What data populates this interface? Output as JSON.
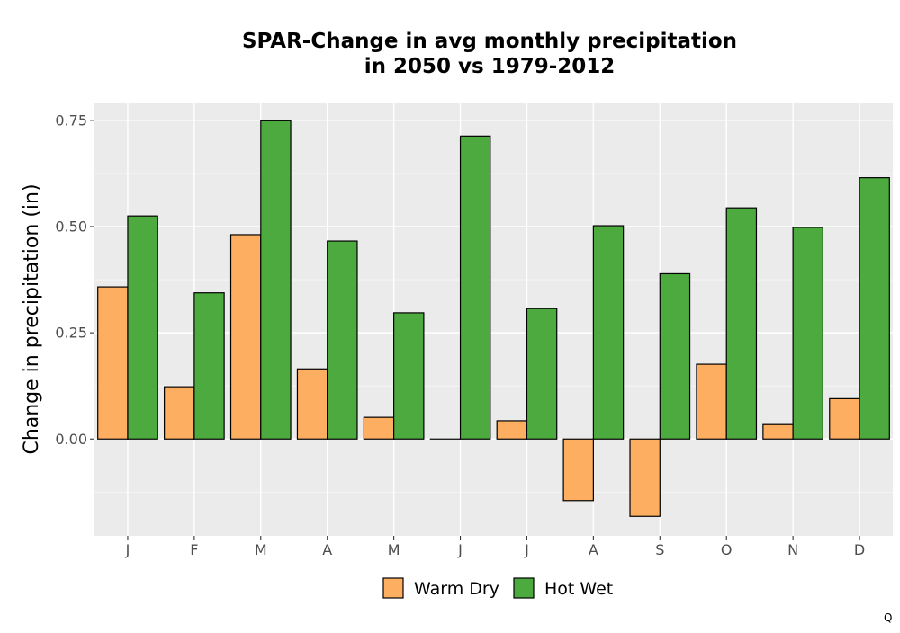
{
  "chart_data": {
    "type": "bar",
    "title_lines": [
      "SPAR-Change in avg monthly precipitation",
      "in 2050 vs 1979-2012"
    ],
    "xlabel": "",
    "ylabel": "Change in precipitation (in)",
    "categories": [
      "J",
      "F",
      "M",
      "A",
      "M",
      "J",
      "J",
      "A",
      "S",
      "O",
      "N",
      "D"
    ],
    "series": [
      {
        "name": "Warm Dry",
        "color": "#FDAE61",
        "values": [
          0.358,
          0.123,
          0.481,
          0.165,
          0.051,
          0.0,
          0.043,
          -0.145,
          -0.182,
          0.176,
          0.034,
          0.095
        ]
      },
      {
        "name": "Hot Wet",
        "color": "#4DAA3F",
        "values": [
          0.525,
          0.344,
          0.749,
          0.466,
          0.297,
          0.713,
          0.307,
          0.502,
          0.389,
          0.544,
          0.498,
          0.615
        ]
      }
    ],
    "ylim": [
      -0.228,
      0.792
    ],
    "yticks": [
      0.0,
      0.25,
      0.5,
      0.75
    ],
    "ytick_labels": [
      "0.00",
      "0.25",
      "0.50",
      "0.75"
    ],
    "grid": true,
    "legend_position": "bottom"
  },
  "corner_mark": "Q"
}
